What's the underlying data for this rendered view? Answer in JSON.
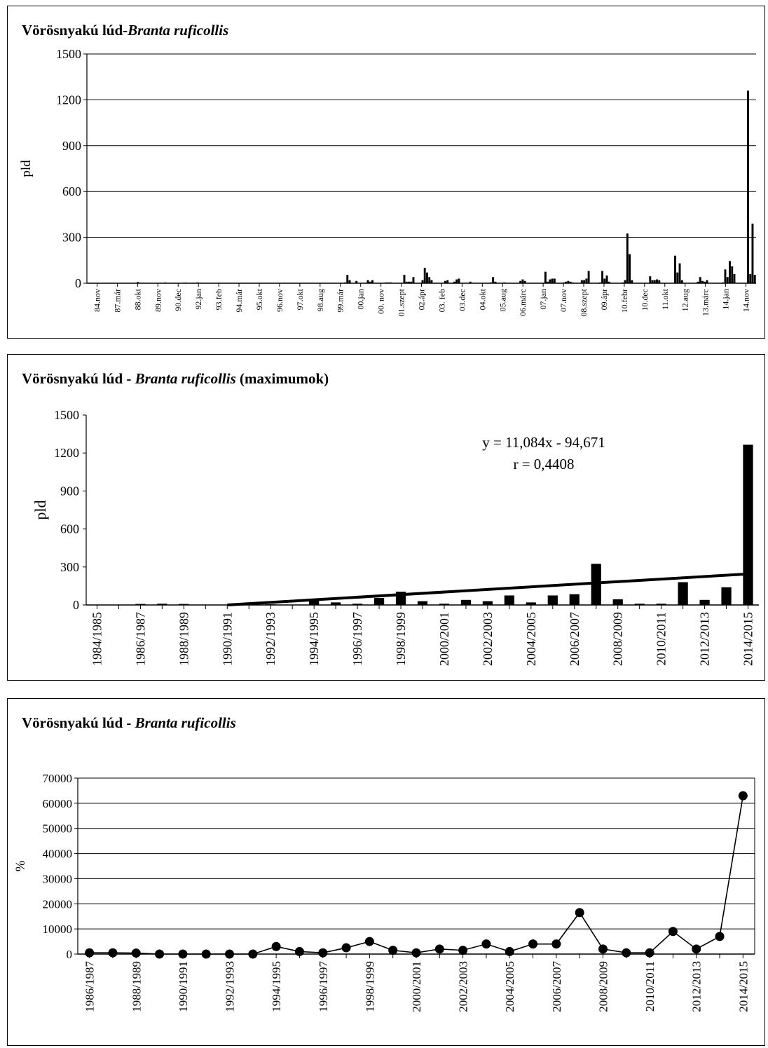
{
  "charts": [
    {
      "title_main": "Vörösnyakú lúd-",
      "title_species": "Branta ruficollis",
      "title_suffix": ""
    },
    {
      "title_main": "Vörösnyakú lúd - ",
      "title_species": "Branta ruficollis",
      "title_suffix": " (maximumok)"
    },
    {
      "title_main": "Vörösnyakú lúd - ",
      "title_species": "Branta ruficollis",
      "title_suffix": ""
    }
  ],
  "chart_data": [
    {
      "type": "bar",
      "title": "Vörösnyakú lúd-Branta ruficollis",
      "ylabel": "pld",
      "xlabel": "",
      "ylim": [
        0,
        1500
      ],
      "yticks": [
        0,
        300,
        600,
        900,
        1200,
        1500
      ],
      "grid": true,
      "x_tick_labels": [
        "84.nov",
        "87.már",
        "88.okt",
        "89.nov",
        "90.dec",
        "92.jan",
        "93.feb",
        "94.már",
        "95.okt",
        "96.nov",
        "97.okt",
        "98.aug",
        "99.már",
        "00.jan",
        "00. nov",
        "01.szept",
        "02.ápr",
        "03. feb",
        "03.dec",
        "04.okt",
        "05.aug",
        "06.márc",
        "07.jan",
        "07.nov",
        "08.szept",
        "09.ápr",
        "10.febr",
        "10.dec",
        "11.okt",
        "12.aug",
        "13.márc",
        "14.jan",
        "14.nov"
      ],
      "values": [
        0,
        0,
        0,
        0,
        0,
        0,
        0,
        0,
        0,
        0,
        0,
        0,
        0,
        0,
        0,
        0,
        0,
        0,
        0,
        0,
        0,
        0,
        8,
        0,
        0,
        0,
        0,
        0,
        0,
        0,
        0,
        0,
        0,
        0,
        5,
        0,
        0,
        0,
        0,
        0,
        0,
        0,
        0,
        4,
        0,
        0,
        0,
        0,
        5,
        0,
        0,
        0,
        0,
        0,
        0,
        0,
        0,
        0,
        0,
        0,
        0,
        0,
        0,
        0,
        0,
        0,
        0,
        0,
        0,
        0,
        0,
        0,
        0,
        0,
        0,
        0,
        0,
        0,
        0,
        0,
        0,
        0,
        0,
        0,
        0,
        0,
        0,
        0,
        0,
        0,
        0,
        0,
        0,
        0,
        0,
        0,
        0,
        0,
        0,
        0,
        0,
        0,
        0,
        0,
        0,
        0,
        0,
        0,
        0,
        0,
        0,
        0,
        0,
        5,
        55,
        20,
        0,
        0,
        15,
        0,
        0,
        0,
        0,
        20,
        10,
        20,
        0,
        0,
        0,
        0,
        0,
        5,
        5,
        5,
        0,
        0,
        0,
        0,
        0,
        55,
        10,
        10,
        10,
        40,
        0,
        0,
        0,
        20,
        100,
        70,
        40,
        20,
        0,
        0,
        0,
        0,
        0,
        15,
        20,
        0,
        0,
        10,
        25,
        30,
        0,
        0,
        0,
        0,
        10,
        0,
        0,
        0,
        0,
        0,
        0,
        0,
        0,
        5,
        40,
        10,
        0,
        0,
        0,
        5,
        0,
        0,
        0,
        0,
        0,
        0,
        15,
        25,
        15,
        0,
        0,
        0,
        0,
        0,
        0,
        0,
        0,
        75,
        10,
        25,
        30,
        30,
        0,
        0,
        0,
        5,
        10,
        15,
        10,
        5,
        0,
        0,
        0,
        20,
        20,
        30,
        80,
        0,
        0,
        0,
        0,
        5,
        80,
        30,
        50,
        10,
        0,
        0,
        0,
        0,
        0,
        5,
        20,
        325,
        190,
        20,
        0,
        0,
        0,
        0,
        0,
        0,
        0,
        45,
        20,
        20,
        25,
        20,
        0,
        0,
        0,
        0,
        0,
        0,
        180,
        70,
        130,
        20,
        0,
        0,
        0,
        0,
        0,
        0,
        10,
        40,
        15,
        10,
        20,
        0,
        0,
        0,
        0,
        0,
        0,
        5,
        90,
        40,
        145,
        110,
        60,
        0,
        0,
        0,
        0,
        0,
        1260,
        60,
        390,
        55
      ]
    },
    {
      "type": "bar",
      "title": "Vörösnyakú lúd - Branta ruficollis (maximumok)",
      "ylabel": "pld",
      "xlabel": "",
      "ylim": [
        0,
        1500
      ],
      "yticks": [
        0,
        300,
        600,
        900,
        1200,
        1500
      ],
      "grid": false,
      "categories": [
        "1984/1985",
        "1985/1986",
        "1986/1987",
        "1987/1988",
        "1988/1989",
        "1989/1990",
        "1990/1991",
        "1991/1992",
        "1992/1993",
        "1993/1994",
        "1994/1995",
        "1995/1996",
        "1996/1997",
        "1997/1998",
        "1998/1999",
        "1999/2000",
        "2000/2001",
        "2001/2002",
        "2002/2003",
        "2003/2004",
        "2004/2005",
        "2005/2006",
        "2006/2007",
        "2007/2008",
        "2008/2009",
        "2009/2010",
        "2010/2011",
        "2011/2012",
        "2012/2013",
        "2013/2014",
        "2014/2015"
      ],
      "visible_tick_labels": [
        "1984/1985",
        "1986/1987",
        "1988/1989",
        "1990/1991",
        "1992/1993",
        "1994/1995",
        "1996/1997",
        "1998/1999",
        "2000/2001",
        "2002/2003",
        "2004/2005",
        "2006/2007",
        "2008/2009",
        "2010/2011",
        "2012/2013",
        "2014/2015"
      ],
      "values": [
        0,
        0,
        8,
        10,
        8,
        0,
        0,
        0,
        5,
        0,
        50,
        20,
        10,
        55,
        105,
        30,
        10,
        40,
        30,
        75,
        20,
        75,
        85,
        325,
        45,
        10,
        10,
        180,
        40,
        140,
        1265
      ],
      "trendline": {
        "x_start": 6,
        "y_start": 0,
        "x_end": 30,
        "y_end": 245
      },
      "annotations": [
        "y = 11,084x  - 94,671",
        "r = 0,4408"
      ]
    },
    {
      "type": "line",
      "title": "Vörösnyakú lúd - Branta ruficollis",
      "ylabel": "%",
      "xlabel": "",
      "ylim": [
        0,
        70000
      ],
      "yticks": [
        0,
        10000,
        20000,
        30000,
        40000,
        50000,
        60000,
        70000
      ],
      "grid": true,
      "categories": [
        "1986/1987",
        "1987/1988",
        "1988/1989",
        "1989/1990",
        "1990/1991",
        "1991/1992",
        "1992/1993",
        "1993/1994",
        "1994/1995",
        "1995/1996",
        "1996/1997",
        "1997/1998",
        "1998/1999",
        "1999/2000",
        "2000/2001",
        "2001/2002",
        "2002/2003",
        "2003/2004",
        "2004/2005",
        "2005/2006",
        "2006/2007",
        "2007/2008",
        "2008/2009",
        "2009/2010",
        "2010/2011",
        "2011/2012",
        "2012/2013",
        "2013/2014",
        "2014/2015"
      ],
      "visible_tick_labels": [
        "1986/1987",
        "1988/1989",
        "1990/1991",
        "1992/1993",
        "1994/1995",
        "1996/1997",
        "1998/1999",
        "2000/2001",
        "2002/2003",
        "2004/2005",
        "2006/2007",
        "2008/2009",
        "2010/2011",
        "2012/2013",
        "2014/2015"
      ],
      "values": [
        500,
        500,
        400,
        0,
        0,
        0,
        0,
        0,
        3000,
        1000,
        500,
        2500,
        5000,
        1500,
        500,
        2000,
        1500,
        4000,
        1000,
        4000,
        4000,
        16500,
        2000,
        500,
        500,
        9000,
        2000,
        7000,
        63000
      ]
    }
  ]
}
